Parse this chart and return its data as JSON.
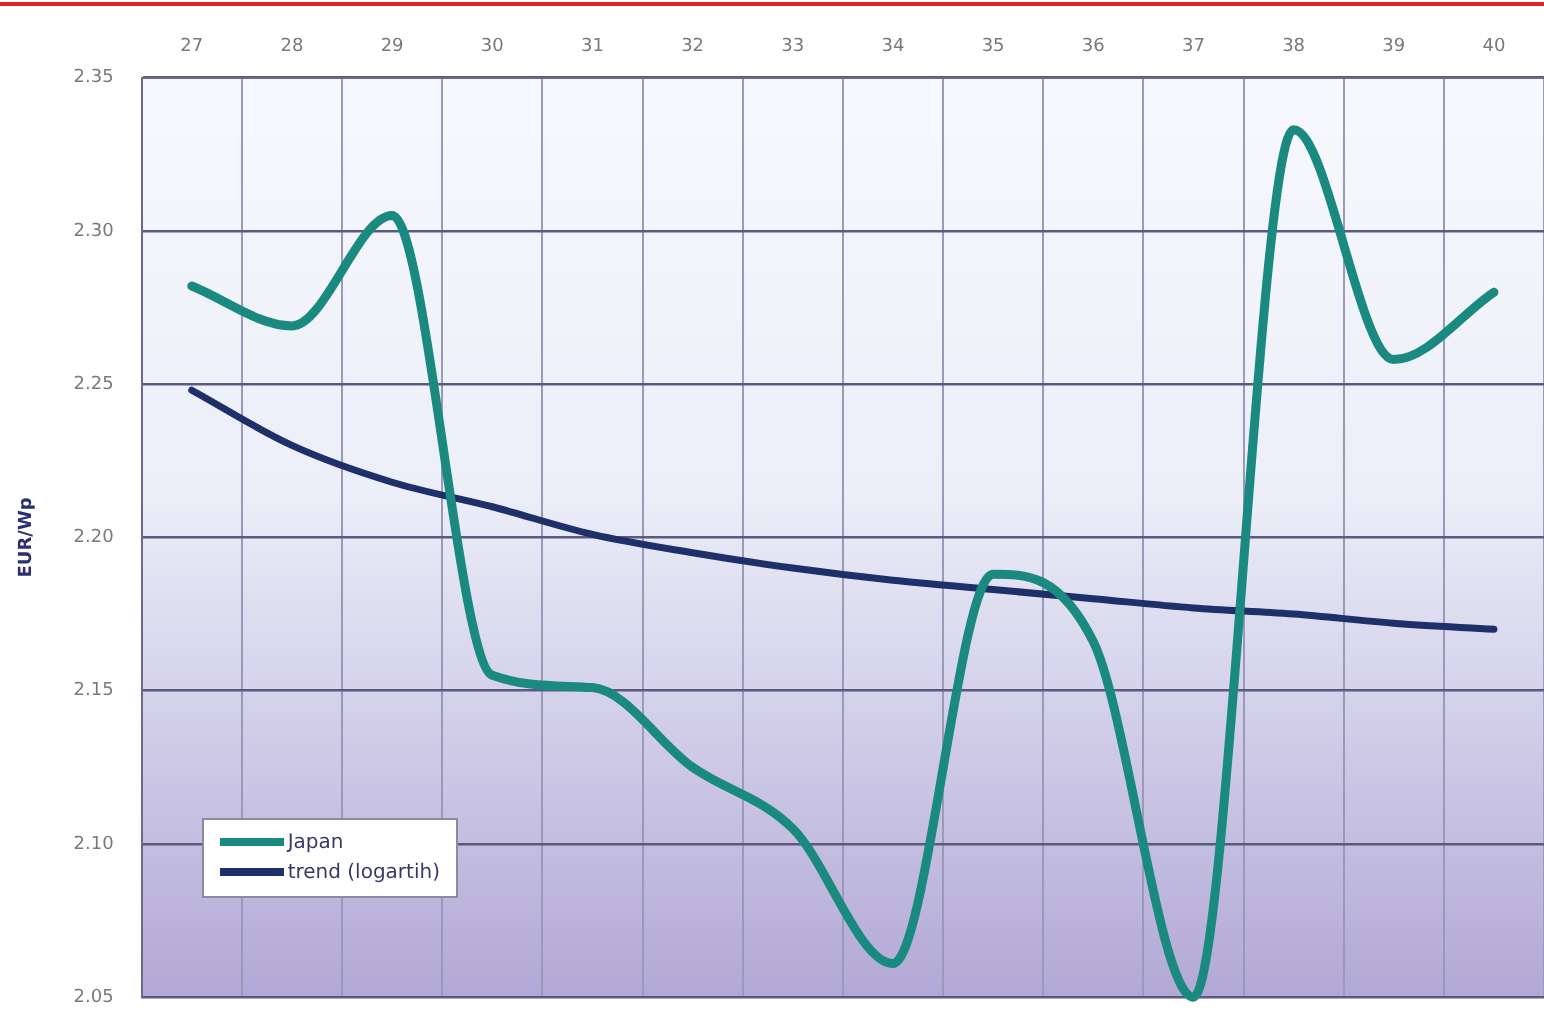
{
  "chart_data": {
    "type": "line",
    "ylabel": "EUR/Wp",
    "categories": [
      "27",
      "28",
      "29",
      "30",
      "31",
      "32",
      "33",
      "34",
      "35",
      "36",
      "37",
      "38",
      "39",
      "40"
    ],
    "series": [
      {
        "name": "Japan",
        "color": "#1a8a80",
        "values": [
          2.282,
          2.269,
          2.305,
          2.155,
          2.151,
          2.125,
          2.105,
          2.061,
          2.188,
          2.166,
          2.05,
          2.333,
          2.258,
          2.28
        ]
      },
      {
        "name": "trend (logartih)",
        "color": "#1f2f6a",
        "values": [
          2.248,
          2.23,
          2.218,
          2.21,
          2.201,
          2.195,
          2.19,
          2.186,
          2.183,
          2.18,
          2.177,
          2.175,
          2.172,
          2.17
        ]
      }
    ],
    "ylim": [
      2.05,
      2.35
    ],
    "yticks": [
      2.05,
      {
        "value": 2.1,
        "label": "2.10"
      },
      2.15,
      {
        "value": 2.2,
        "label": "2.20"
      },
      2.25,
      {
        "value": 2.3,
        "label": "2.30"
      },
      2.35
    ],
    "grid": true,
    "legend": "bottom left",
    "marker": "none",
    "line_style": "solid"
  }
}
